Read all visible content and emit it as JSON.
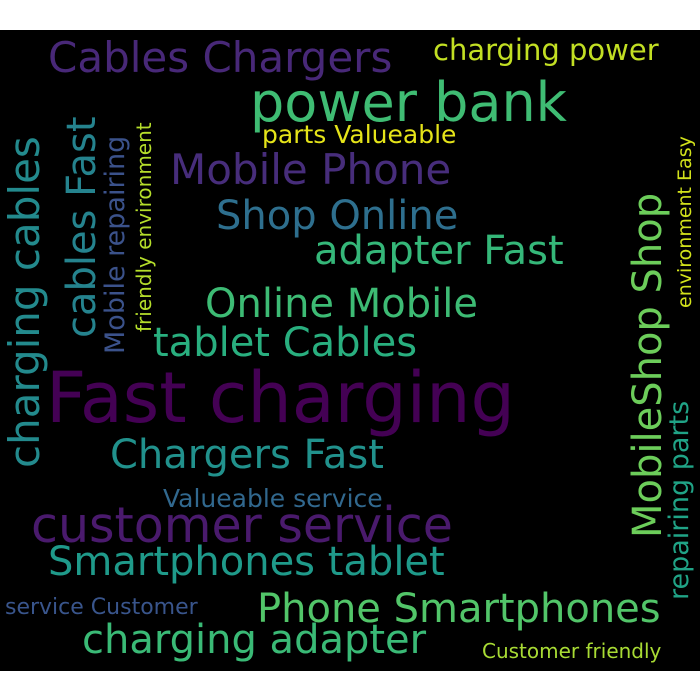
{
  "wordcloud": {
    "words": [
      {
        "key": "w01",
        "text": "Fast charging",
        "color": "#440154"
      },
      {
        "key": "w02",
        "text": "customer service",
        "color": "#4a1a6d"
      },
      {
        "key": "w03",
        "text": "power bank",
        "color": "#3fbc73"
      },
      {
        "key": "w04",
        "text": "Cables Chargers",
        "color": "#482878"
      },
      {
        "key": "w05",
        "text": "charging power",
        "color": "#c2df23"
      },
      {
        "key": "w06",
        "text": "parts Valueable",
        "color": "#e5e419"
      },
      {
        "key": "w07",
        "text": "Mobile Phone",
        "color": "#472d7b"
      },
      {
        "key": "w08",
        "text": "Shop Online",
        "color": "#2e6f8e"
      },
      {
        "key": "w09",
        "text": "adapter Fast",
        "color": "#35b779"
      },
      {
        "key": "w10",
        "text": "Online Mobile",
        "color": "#3dbb74"
      },
      {
        "key": "w11",
        "text": "tablet Cables",
        "color": "#29af7f"
      },
      {
        "key": "w12",
        "text": "Chargers Fast",
        "color": "#21918c"
      },
      {
        "key": "w13",
        "text": "Valueable service",
        "color": "#31688e"
      },
      {
        "key": "w14",
        "text": "Smartphones tablet",
        "color": "#1f9a8a"
      },
      {
        "key": "w15",
        "text": "Phone Smartphones",
        "color": "#52c569"
      },
      {
        "key": "w16",
        "text": "charging adapter",
        "color": "#3aba76"
      },
      {
        "key": "w17",
        "text": "service Customer",
        "color": "#39558c"
      },
      {
        "key": "w18",
        "text": "Customer friendly",
        "color": "#a8db34"
      },
      {
        "key": "w19",
        "text": "charging cables",
        "color": "#238a8d"
      },
      {
        "key": "w20",
        "text": "cables Fast",
        "color": "#25838e"
      },
      {
        "key": "w21",
        "text": "Mobile repairing",
        "color": "#3b528b"
      },
      {
        "key": "w22",
        "text": "friendly environment",
        "color": "#b5de2b"
      },
      {
        "key": "w23",
        "text": "MobileShop Shop",
        "color": "#6ccd5a"
      },
      {
        "key": "w24",
        "text": "repairing parts",
        "color": "#20a386"
      },
      {
        "key": "w25",
        "text": "environment Easy",
        "color": "#d2e21b"
      }
    ]
  }
}
